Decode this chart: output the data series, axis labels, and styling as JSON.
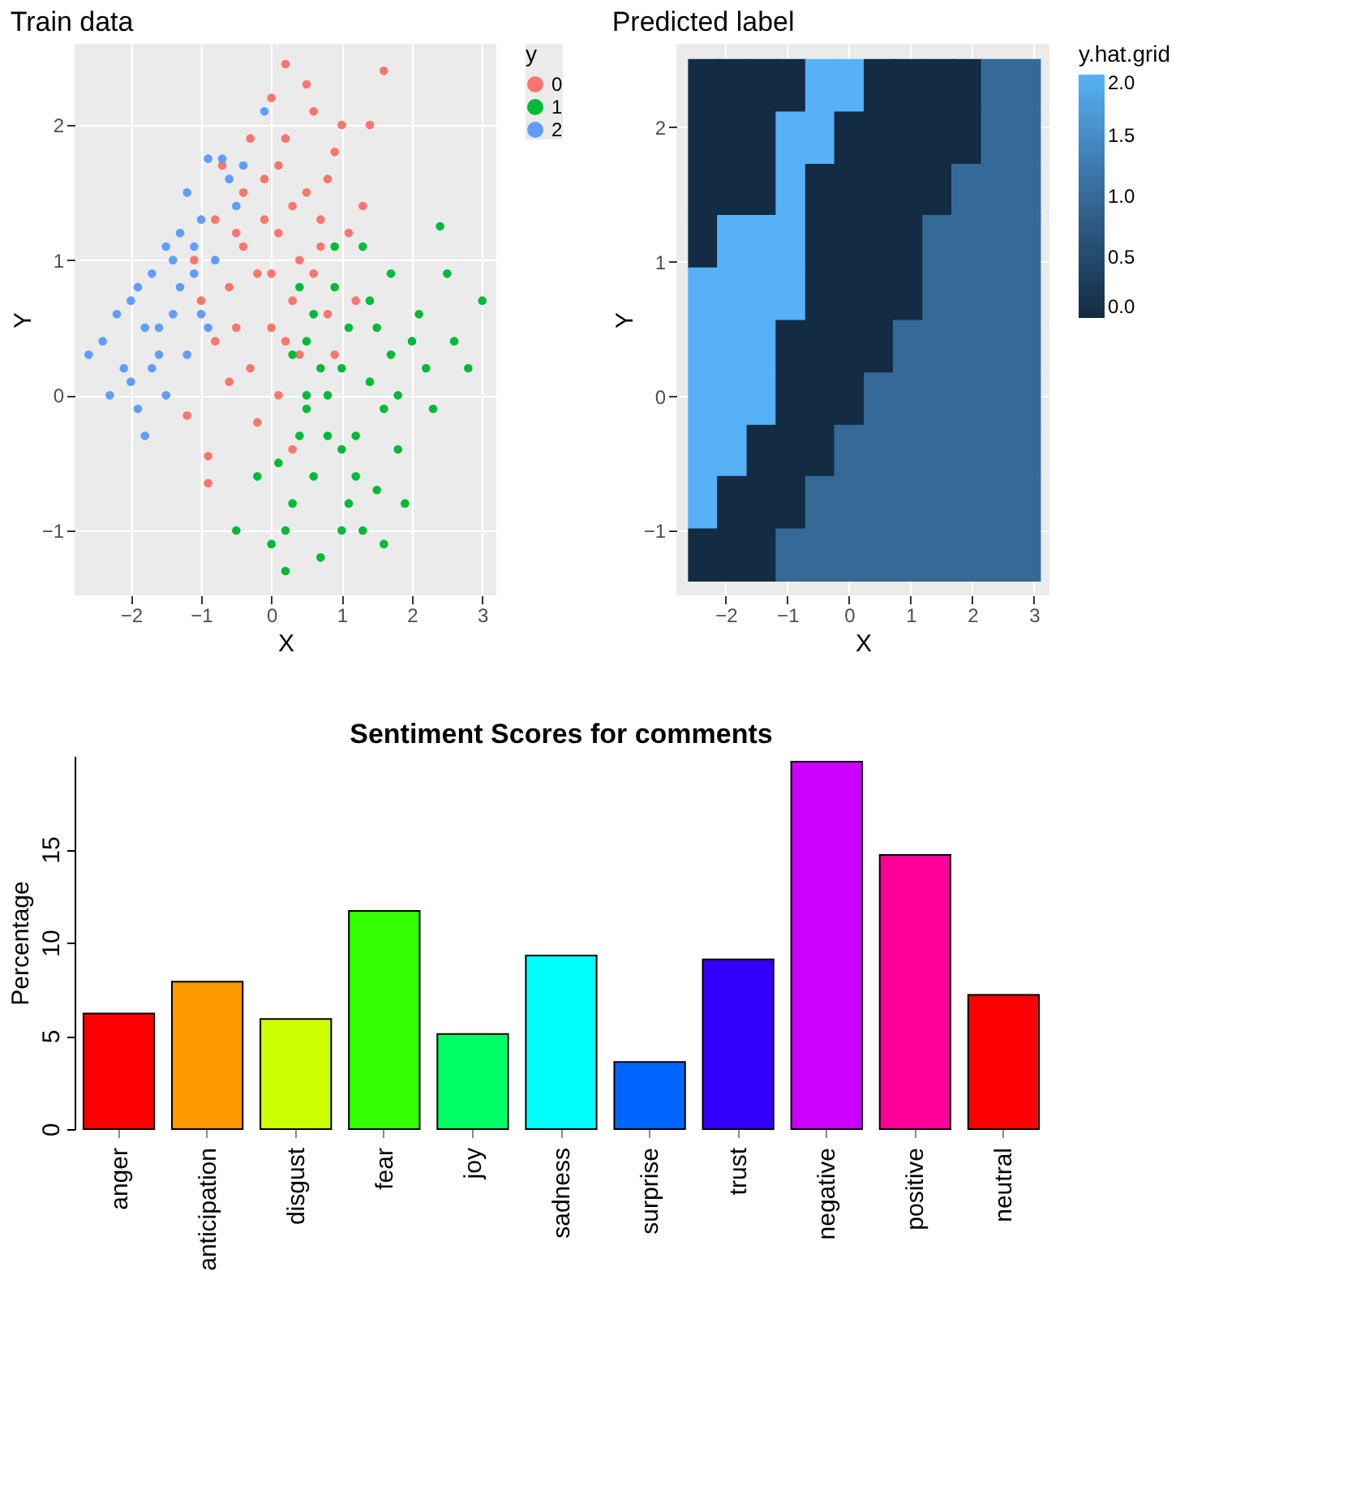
{
  "chart_data": [
    {
      "type": "scatter",
      "title": "Train data",
      "xlabel": "X",
      "ylabel": "Y",
      "legend_title": "y",
      "legend": "right",
      "grid": true,
      "marker": "circle",
      "xlim": [
        -2.8,
        3.2
      ],
      "xticks": [
        -2,
        -1,
        0,
        1,
        2,
        3
      ],
      "ylim": [
        -1.48,
        2.6
      ],
      "yticks": [
        -1,
        0,
        1,
        2
      ],
      "series": [
        {
          "name": "0",
          "color": "#f8766d",
          "x": [
            -0.2,
            0.1,
            0.3,
            -0.4,
            0.5,
            0.0,
            -0.6,
            0.2,
            -0.1,
            0.7,
            0.4,
            -0.3,
            0.9,
            -0.8,
            0.6,
            0.2,
            1.6,
            -0.9,
            -0.9,
            -1.2,
            1.3,
            0.8,
            -0.5,
            0.1,
            -0.2,
            0.3,
            1.0,
            -0.7,
            0.0,
            0.4,
            -0.1,
            0.6,
            -0.4,
            1.1,
            -1.0,
            0.2,
            0.8,
            -0.6,
            0.5,
            -0.3,
            1.4,
            0.9,
            -1.1,
            0.3,
            0.0,
            -0.8,
            0.7,
            -0.5,
            1.2,
            0.1
          ],
          "values": [
            0.9,
            1.2,
            0.7,
            1.1,
            1.5,
            0.5,
            0.8,
            1.9,
            1.6,
            1.1,
            0.3,
            0.2,
            1.8,
            1.3,
            2.1,
            2.45,
            2.4,
            -0.45,
            -0.65,
            -0.15,
            1.4,
            0.6,
            0.5,
            0.0,
            -0.2,
            -0.4,
            2.0,
            1.7,
            2.2,
            1.0,
            1.3,
            0.9,
            1.5,
            1.2,
            0.7,
            0.4,
            1.6,
            0.1,
            2.3,
            1.9,
            2.0,
            0.3,
            1.0,
            1.4,
            0.9,
            0.4,
            1.3,
            1.2,
            0.7,
            1.7
          ]
        },
        {
          "name": "1",
          "color": "#00ba38",
          "x": [
            1.0,
            0.5,
            1.5,
            0.8,
            1.2,
            2.0,
            0.3,
            1.7,
            0.6,
            1.3,
            2.5,
            3.0,
            2.4,
            0.0,
            0.2,
            -0.5,
            1.0,
            1.8,
            0.9,
            0.4,
            1.4,
            2.2,
            0.7,
            1.1,
            1.6,
            0.5,
            1.9,
            0.3,
            2.8,
            1.2,
            0.8,
            1.5,
            0.1,
            2.1,
            1.7,
            0.6,
            1.3,
            0.9,
            2.3,
            1.0,
            0.4,
            1.8,
            0.7,
            1.4,
            -0.2,
            0.2,
            1.6,
            2.6,
            0.5,
            1.1
          ],
          "values": [
            0.2,
            0.0,
            0.5,
            -0.3,
            -0.6,
            0.4,
            -0.8,
            0.9,
            0.6,
            1.1,
            0.9,
            0.7,
            1.25,
            -1.1,
            -1.3,
            -1.0,
            -1.0,
            -0.4,
            0.8,
            -0.3,
            0.1,
            0.2,
            -1.2,
            0.5,
            -0.1,
            0.4,
            -0.8,
            0.3,
            0.2,
            -0.3,
            0.0,
            -0.7,
            -0.5,
            0.6,
            0.3,
            -0.6,
            -1.0,
            1.1,
            -0.1,
            -0.4,
            0.8,
            0.0,
            0.2,
            0.7,
            -0.6,
            -1.0,
            -1.1,
            0.4,
            -0.1,
            -0.8
          ]
        },
        {
          "name": "2",
          "color": "#619cff",
          "x": [
            -1.3,
            -1.8,
            -2.1,
            -2.6,
            -2.3,
            -1.5,
            -1.0,
            -0.9,
            -0.7,
            -1.6,
            -1.9,
            -1.8,
            -1.2,
            -0.5,
            -1.4,
            -2.0,
            -1.7,
            -1.1,
            -0.8,
            -2.4,
            -1.3,
            -0.6,
            -1.5,
            -2.2,
            -1.0,
            -0.1,
            -1.9,
            -1.4,
            -1.6,
            -1.2,
            -2.0,
            -0.4,
            -1.7,
            -1.1,
            -0.9
          ],
          "values": [
            0.8,
            0.5,
            0.2,
            0.3,
            0.0,
            1.1,
            1.3,
            1.75,
            1.75,
            0.3,
            -0.1,
            -0.3,
            1.5,
            1.4,
            0.6,
            0.7,
            0.9,
            0.9,
            1.0,
            0.4,
            1.2,
            1.6,
            0.0,
            0.6,
            0.6,
            2.1,
            0.8,
            1.0,
            0.5,
            0.3,
            0.1,
            1.7,
            0.2,
            1.1,
            0.5
          ]
        }
      ]
    },
    {
      "type": "scatter",
      "title": "Predicted label",
      "xlabel": "X",
      "ylabel": "Y",
      "clabel": "y.hat.grid",
      "clim": [
        0,
        2
      ],
      "marker": "square",
      "grid": true,
      "cticks": [
        {
          "value": 0,
          "label": "0.0"
        },
        {
          "value": 0.5,
          "label": "0.5"
        },
        {
          "value": 1,
          "label": "1.0"
        },
        {
          "value": 1.5,
          "label": "1.5"
        },
        {
          "value": 2,
          "label": "2.0"
        }
      ],
      "xlim": [
        -2.8,
        3.25
      ],
      "xticks": [
        -2,
        -1,
        0,
        1,
        2,
        3
      ],
      "ylim": [
        -1.48,
        2.62
      ],
      "yticks": [
        -1,
        0,
        1,
        2
      ],
      "series": [
        {
          "x": [
            -2.36,
            -1.89,
            -1.41,
            -0.94,
            -0.46,
            0.01,
            0.49,
            0.96,
            1.44,
            1.91,
            2.39,
            2.86,
            -2.36,
            -1.89,
            -1.41,
            -0.94,
            -0.46,
            0.01,
            0.49,
            0.96,
            1.44,
            1.91,
            2.39,
            2.86,
            -2.36,
            -1.89,
            -1.41,
            -0.94,
            -0.46,
            0.01,
            0.49,
            0.96,
            1.44,
            1.91,
            2.39,
            2.86,
            -2.36,
            -1.89,
            -1.41,
            -0.94,
            -0.46,
            0.01,
            0.49,
            0.96,
            1.44,
            1.91,
            2.39,
            2.86,
            -2.36,
            -1.89,
            -1.41,
            -0.94,
            -0.46,
            0.01,
            0.49,
            0.96,
            1.44,
            1.91,
            2.39,
            2.86,
            -2.36,
            -1.89,
            -1.41,
            -0.94,
            -0.46,
            0.01,
            0.49,
            0.96,
            1.44,
            1.91,
            2.39,
            2.86,
            -2.36,
            -1.89,
            -1.41,
            -0.94,
            -0.46,
            0.01,
            0.49,
            0.96,
            1.44,
            1.91,
            2.39,
            2.86,
            -2.36,
            -1.89,
            -1.41,
            -0.94,
            -0.46,
            0.01,
            0.49,
            0.96,
            1.44,
            1.91,
            2.39,
            2.86,
            -2.36,
            -1.89,
            -1.41,
            -0.94,
            -0.46,
            0.01,
            0.49,
            0.96,
            1.44,
            1.91,
            2.39,
            2.86,
            -2.36,
            -1.89,
            -1.41,
            -0.94,
            -0.46,
            0.01,
            0.49,
            0.96,
            1.44,
            1.91,
            2.39,
            2.86
          ],
          "values": [
            2.31,
            2.31,
            2.31,
            2.31,
            2.31,
            2.31,
            2.31,
            2.31,
            2.31,
            2.31,
            2.31,
            2.31,
            1.92,
            1.92,
            1.92,
            1.92,
            1.92,
            1.92,
            1.92,
            1.92,
            1.92,
            1.92,
            1.92,
            1.92,
            1.53,
            1.53,
            1.53,
            1.53,
            1.53,
            1.53,
            1.53,
            1.53,
            1.53,
            1.53,
            1.53,
            1.53,
            1.15,
            1.15,
            1.15,
            1.15,
            1.15,
            1.15,
            1.15,
            1.15,
            1.15,
            1.15,
            1.15,
            1.15,
            0.76,
            0.76,
            0.76,
            0.76,
            0.76,
            0.76,
            0.76,
            0.76,
            0.76,
            0.76,
            0.76,
            0.76,
            0.37,
            0.37,
            0.37,
            0.37,
            0.37,
            0.37,
            0.37,
            0.37,
            0.37,
            0.37,
            0.37,
            0.37,
            -0.02,
            -0.02,
            -0.02,
            -0.02,
            -0.02,
            -0.02,
            -0.02,
            -0.02,
            -0.02,
            -0.02,
            -0.02,
            -0.02,
            -0.41,
            -0.41,
            -0.41,
            -0.41,
            -0.41,
            -0.41,
            -0.41,
            -0.41,
            -0.41,
            -0.41,
            -0.41,
            -0.41,
            -0.79,
            -0.79,
            -0.79,
            -0.79,
            -0.79,
            -0.79,
            -0.79,
            -0.79,
            -0.79,
            -0.79,
            -0.79,
            -0.79,
            -1.18,
            -1.18,
            -1.18,
            -1.18,
            -1.18,
            -1.18,
            -1.18,
            -1.18,
            -1.18,
            -1.18,
            -1.18,
            -1.18
          ],
          "cvalues": [
            0,
            0,
            0,
            0,
            2,
            2,
            0,
            0,
            0,
            0,
            1,
            1,
            0,
            0,
            0,
            2,
            2,
            0,
            0,
            0,
            0,
            0,
            1,
            1,
            0,
            0,
            0,
            2,
            0,
            0,
            0,
            0,
            0,
            1,
            1,
            1,
            0,
            2,
            2,
            2,
            0,
            0,
            0,
            0,
            1,
            1,
            1,
            1,
            2,
            2,
            2,
            2,
            0,
            0,
            0,
            0,
            1,
            1,
            1,
            1,
            2,
            2,
            2,
            0,
            0,
            0,
            0,
            1,
            1,
            1,
            1,
            1,
            2,
            2,
            2,
            0,
            0,
            0,
            1,
            1,
            1,
            1,
            1,
            1,
            2,
            2,
            0,
            0,
            0,
            1,
            1,
            1,
            1,
            1,
            1,
            1,
            2,
            0,
            0,
            0,
            1,
            1,
            1,
            1,
            1,
            1,
            1,
            1,
            0,
            0,
            0,
            1,
            1,
            1,
            1,
            1,
            1,
            1,
            1,
            1
          ]
        }
      ]
    },
    {
      "type": "bar",
      "title": "Sentiment Scores for comments",
      "ylabel": "Percentage",
      "categories": [
        "anger",
        "anticipation",
        "disgust",
        "fear",
        "joy",
        "sadness",
        "surprise",
        "trust",
        "negative",
        "positive",
        "neutral"
      ],
      "values": [
        6.2,
        7.9,
        5.9,
        11.7,
        5.1,
        9.3,
        3.6,
        9.1,
        19.7,
        14.7,
        7.2
      ],
      "colors": [
        "#ff0000",
        "#ff9900",
        "#ccff00",
        "#33ff00",
        "#00ff66",
        "#00ffff",
        "#0066ff",
        "#3300ff",
        "#cc00ff",
        "#ff0099",
        "#ff0000"
      ],
      "ylim": [
        0,
        20
      ],
      "yticks": [
        0,
        5,
        10,
        15
      ]
    }
  ]
}
